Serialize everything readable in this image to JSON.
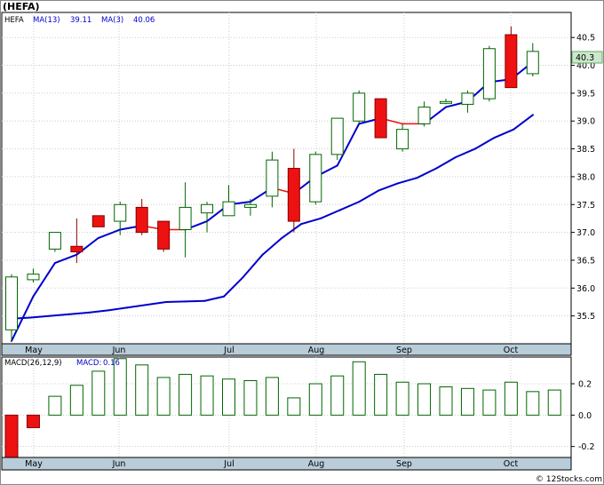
{
  "header": {
    "title": "(HEFA)",
    "legend_ticker": "HEFA",
    "legend_ma13": "MA(13)",
    "legend_ma13_value": "39.11",
    "legend_ma3": "MA(3)",
    "legend_ma3_value": "40.06",
    "last_price_label": "40.3"
  },
  "macd_legend": {
    "label": "MACD(26,12,9)",
    "macd_label": "MACD:",
    "macd_value": "0.16"
  },
  "credit": "© 12Stocks.com",
  "colors": {
    "up_candle": "#ffffff",
    "down_candle": "#ee1111",
    "candle_border": "#006600",
    "ma": "#0000cc",
    "ma_down_segment": "#ee1111",
    "axis_band": "#b8ccd9",
    "macd_pos": "#006600",
    "macd_neg": "#ee1111",
    "last_label_bg": "#cce8cc"
  },
  "chart_data": [
    {
      "type": "candlestick",
      "title": "(HEFA)",
      "x_ticks": [
        "May",
        "Jun",
        "Jul",
        "Aug",
        "Sep",
        "Oct"
      ],
      "y_ticks": [
        35.5,
        36.0,
        36.5,
        37.0,
        37.5,
        38.0,
        38.5,
        39.0,
        39.5,
        40.0,
        40.5
      ],
      "ylim": [
        35.0,
        40.95
      ],
      "grid": true,
      "candles": [
        {
          "o": 35.25,
          "h": 36.25,
          "l": 35.05,
          "c": 36.2
        },
        {
          "o": 36.15,
          "h": 36.35,
          "l": 36.1,
          "c": 36.25
        },
        {
          "o": 36.7,
          "h": 37.0,
          "l": 36.65,
          "c": 37.0
        },
        {
          "o": 36.75,
          "h": 37.25,
          "l": 36.45,
          "c": 36.65
        },
        {
          "o": 37.3,
          "h": 37.3,
          "l": 37.1,
          "c": 37.1
        },
        {
          "o": 37.2,
          "h": 37.55,
          "l": 36.95,
          "c": 37.5
        },
        {
          "o": 37.45,
          "h": 37.6,
          "l": 36.95,
          "c": 37.0
        },
        {
          "o": 37.2,
          "h": 37.2,
          "l": 36.65,
          "c": 36.7
        },
        {
          "o": 37.05,
          "h": 37.9,
          "l": 36.55,
          "c": 37.45
        },
        {
          "o": 37.35,
          "h": 37.55,
          "l": 37.0,
          "c": 37.5
        },
        {
          "o": 37.3,
          "h": 37.85,
          "l": 37.3,
          "c": 37.55
        },
        {
          "o": 37.45,
          "h": 37.6,
          "l": 37.3,
          "c": 37.5
        },
        {
          "o": 37.65,
          "h": 38.45,
          "l": 37.45,
          "c": 38.3
        },
        {
          "o": 38.15,
          "h": 38.5,
          "l": 37.0,
          "c": 37.2
        },
        {
          "o": 37.55,
          "h": 38.45,
          "l": 37.5,
          "c": 38.4
        },
        {
          "o": 38.4,
          "h": 39.05,
          "l": 38.3,
          "c": 39.05
        },
        {
          "o": 39.0,
          "h": 39.55,
          "l": 38.95,
          "c": 39.5
        },
        {
          "o": 39.4,
          "h": 39.4,
          "l": 38.7,
          "c": 38.7
        },
        {
          "o": 38.5,
          "h": 38.95,
          "l": 38.45,
          "c": 38.85
        },
        {
          "o": 38.95,
          "h": 39.35,
          "l": 38.9,
          "c": 39.25
        },
        {
          "o": 39.35,
          "h": 39.4,
          "l": 39.3,
          "c": 39.35
        },
        {
          "o": 39.3,
          "h": 39.55,
          "l": 39.15,
          "c": 39.5
        },
        {
          "o": 39.4,
          "h": 40.35,
          "l": 39.35,
          "c": 40.3
        },
        {
          "o": 40.55,
          "h": 40.7,
          "l": 39.6,
          "c": 39.6
        },
        {
          "o": 39.85,
          "h": 40.4,
          "l": 39.8,
          "c": 40.25
        }
      ],
      "series": [
        {
          "name": "MA(3)",
          "values": [
            35.05,
            35.85,
            36.45,
            36.6,
            36.9,
            37.05,
            37.12,
            37.05,
            37.05,
            37.2,
            37.5,
            37.55,
            37.8,
            37.7,
            38.0,
            38.2,
            38.95,
            39.05,
            38.95,
            38.95,
            39.25,
            39.35,
            39.7,
            39.75,
            40.06
          ]
        },
        {
          "name": "MA(13)",
          "values": [
            35.45,
            35.47,
            35.5,
            35.53,
            35.56,
            35.6,
            35.65,
            35.7,
            35.75,
            35.76,
            35.77,
            35.85,
            36.2,
            36.6,
            36.9,
            37.15,
            37.25,
            37.4,
            37.55,
            37.75,
            37.88,
            37.98,
            38.15,
            38.35,
            38.5,
            38.7,
            38.85,
            39.11
          ]
        }
      ]
    },
    {
      "type": "bar",
      "title": "MACD(26,12,9)",
      "x_ticks": [
        "May",
        "Jun",
        "Jul",
        "Aug",
        "Sep",
        "Oct"
      ],
      "y_ticks": [
        -0.2,
        0.0,
        0.2
      ],
      "ylim": [
        -0.27,
        0.37
      ],
      "values": [
        -0.27,
        -0.08,
        0.12,
        0.19,
        0.28,
        0.36,
        0.32,
        0.24,
        0.26,
        0.25,
        0.23,
        0.22,
        0.24,
        0.11,
        0.2,
        0.25,
        0.34,
        0.26,
        0.21,
        0.2,
        0.18,
        0.17,
        0.16,
        0.21,
        0.15,
        0.16
      ]
    }
  ]
}
